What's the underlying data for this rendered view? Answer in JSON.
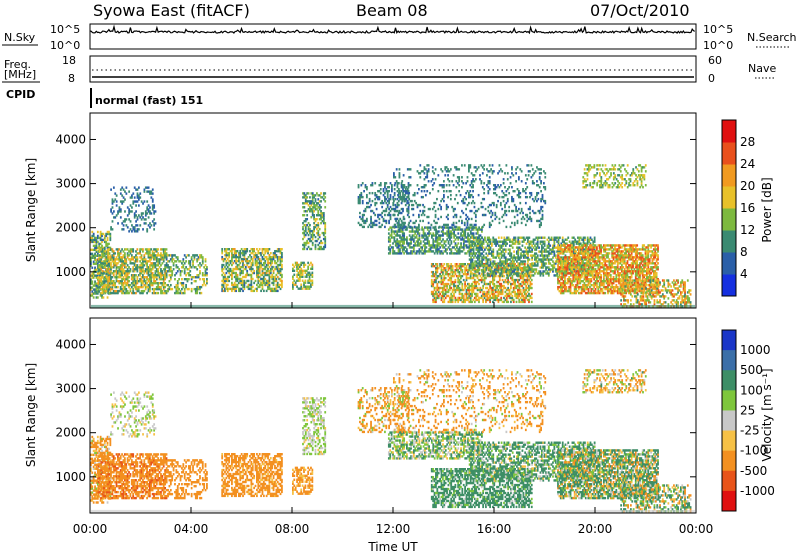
{
  "header": {
    "station": "Syowa East (fitACF)",
    "beam": "Beam 08",
    "date": "07/Oct/2010"
  },
  "top_panels": {
    "nsky_label": "N.Sky",
    "nsearch_label": "N.Search",
    "nsky_ticks": [
      "10^5",
      "10^0"
    ],
    "nsearch_ticks": [
      "10^5",
      "10^0"
    ],
    "freq_label_line1": "Freq.",
    "freq_label_line2": "[MHz]",
    "freq_ticks": [
      "18",
      "8"
    ],
    "nave_label": "Nave",
    "nave_ticks": [
      "60",
      "0"
    ],
    "cpid_label": "CPID",
    "cpid_value": "normal (fast) 151"
  },
  "chart_data": [
    {
      "type": "heatmap",
      "panel": "power",
      "ylabel": "Slant Range [km]",
      "xlabel": "",
      "ylim": [
        180,
        4600
      ],
      "yticks": [
        1000,
        2000,
        3000,
        4000
      ],
      "xlim": [
        0,
        24
      ],
      "colorbar": {
        "label": "Power [dB]",
        "ticks": [
          4,
          8,
          12,
          16,
          20,
          24,
          28
        ],
        "range": [
          0,
          32
        ],
        "colors": [
          "#1530e0",
          "#2a5fa8",
          "#3a8a72",
          "#7db93f",
          "#e8c12a",
          "#f19a20",
          "#e9501c",
          "#e01010"
        ]
      }
    },
    {
      "type": "heatmap",
      "panel": "velocity",
      "ylabel": "Slant Range [km]",
      "xlabel": "Time UT",
      "ylim": [
        180,
        4600
      ],
      "yticks": [
        1000,
        2000,
        3000,
        4000
      ],
      "xlim": [
        0,
        24
      ],
      "xticks": [
        "00:00",
        "04:00",
        "08:00",
        "12:00",
        "16:00",
        "20:00",
        "00:00"
      ],
      "colorbar": {
        "label": "Velocity [m s⁻¹]",
        "ticks": [
          "1000",
          "500",
          "100",
          "25",
          "-25",
          "-100",
          "-500",
          "-1000"
        ],
        "colors": [
          "#1a36c8",
          "#3b6fa8",
          "#3d8e66",
          "#7ec63c",
          "#c8c8c8",
          "#f6c146",
          "#f39020",
          "#e8541a",
          "#e01010"
        ]
      }
    }
  ]
}
